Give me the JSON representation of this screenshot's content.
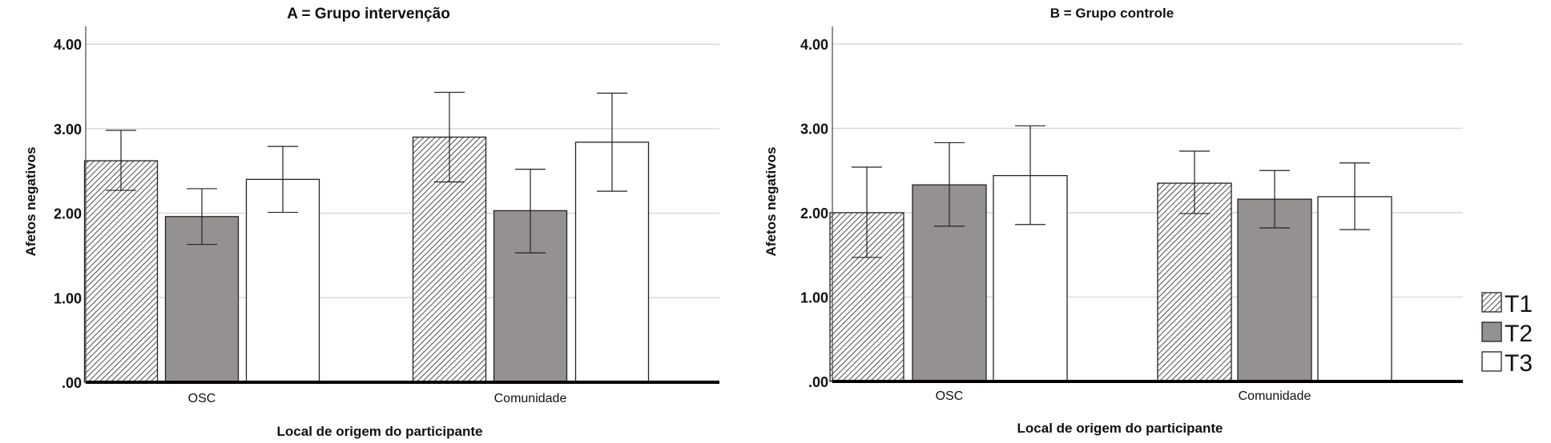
{
  "chart_data": [
    {
      "type": "bar",
      "title": "A = Grupo intervenção",
      "xlabel": "Local de origem do participante",
      "ylabel": "Afetos negativos",
      "ylim": [
        0,
        4.2
      ],
      "yticks": [
        ".00",
        "1.00",
        "2.00",
        "3.00",
        "4.00"
      ],
      "grid": true,
      "categories": [
        "OSC",
        "Comunidade"
      ],
      "series": [
        {
          "name": "T1",
          "values": [
            2.62,
            2.9
          ],
          "err_low": [
            2.27,
            2.37
          ],
          "err_high": [
            2.98,
            3.43
          ]
        },
        {
          "name": "T2",
          "values": [
            1.96,
            2.03
          ],
          "err_low": [
            1.63,
            1.53
          ],
          "err_high": [
            2.29,
            2.52
          ]
        },
        {
          "name": "T3",
          "values": [
            2.4,
            2.84
          ],
          "err_low": [
            2.01,
            2.26
          ],
          "err_high": [
            2.79,
            3.42
          ]
        }
      ]
    },
    {
      "type": "bar",
      "title": "B = Grupo controle",
      "xlabel": "Local de origem do participante",
      "ylabel": "Afetos negativos",
      "ylim": [
        0,
        4.2
      ],
      "yticks": [
        ".00",
        "1.00",
        "2.00",
        "3.00",
        "4.00"
      ],
      "grid": true,
      "categories": [
        "OSC",
        "Comunidade"
      ],
      "series": [
        {
          "name": "T1",
          "values": [
            2.0,
            2.35
          ],
          "err_low": [
            1.47,
            1.99
          ],
          "err_high": [
            2.54,
            2.73
          ]
        },
        {
          "name": "T2",
          "values": [
            2.33,
            2.16
          ],
          "err_low": [
            1.84,
            1.82
          ],
          "err_high": [
            2.83,
            2.5
          ]
        },
        {
          "name": "T3",
          "values": [
            2.44,
            2.19
          ],
          "err_low": [
            1.86,
            1.8
          ],
          "err_high": [
            3.03,
            2.59
          ]
        }
      ]
    }
  ],
  "legend": {
    "position": "right",
    "items": [
      {
        "label": "T1",
        "fill": "hatch"
      },
      {
        "label": "T2",
        "fill": "#959191"
      },
      {
        "label": "T3",
        "fill": "#ffffff"
      }
    ]
  },
  "colors": {
    "t2_gray": "#959191",
    "grid": "#d9d9d9",
    "axis": "#000000"
  }
}
